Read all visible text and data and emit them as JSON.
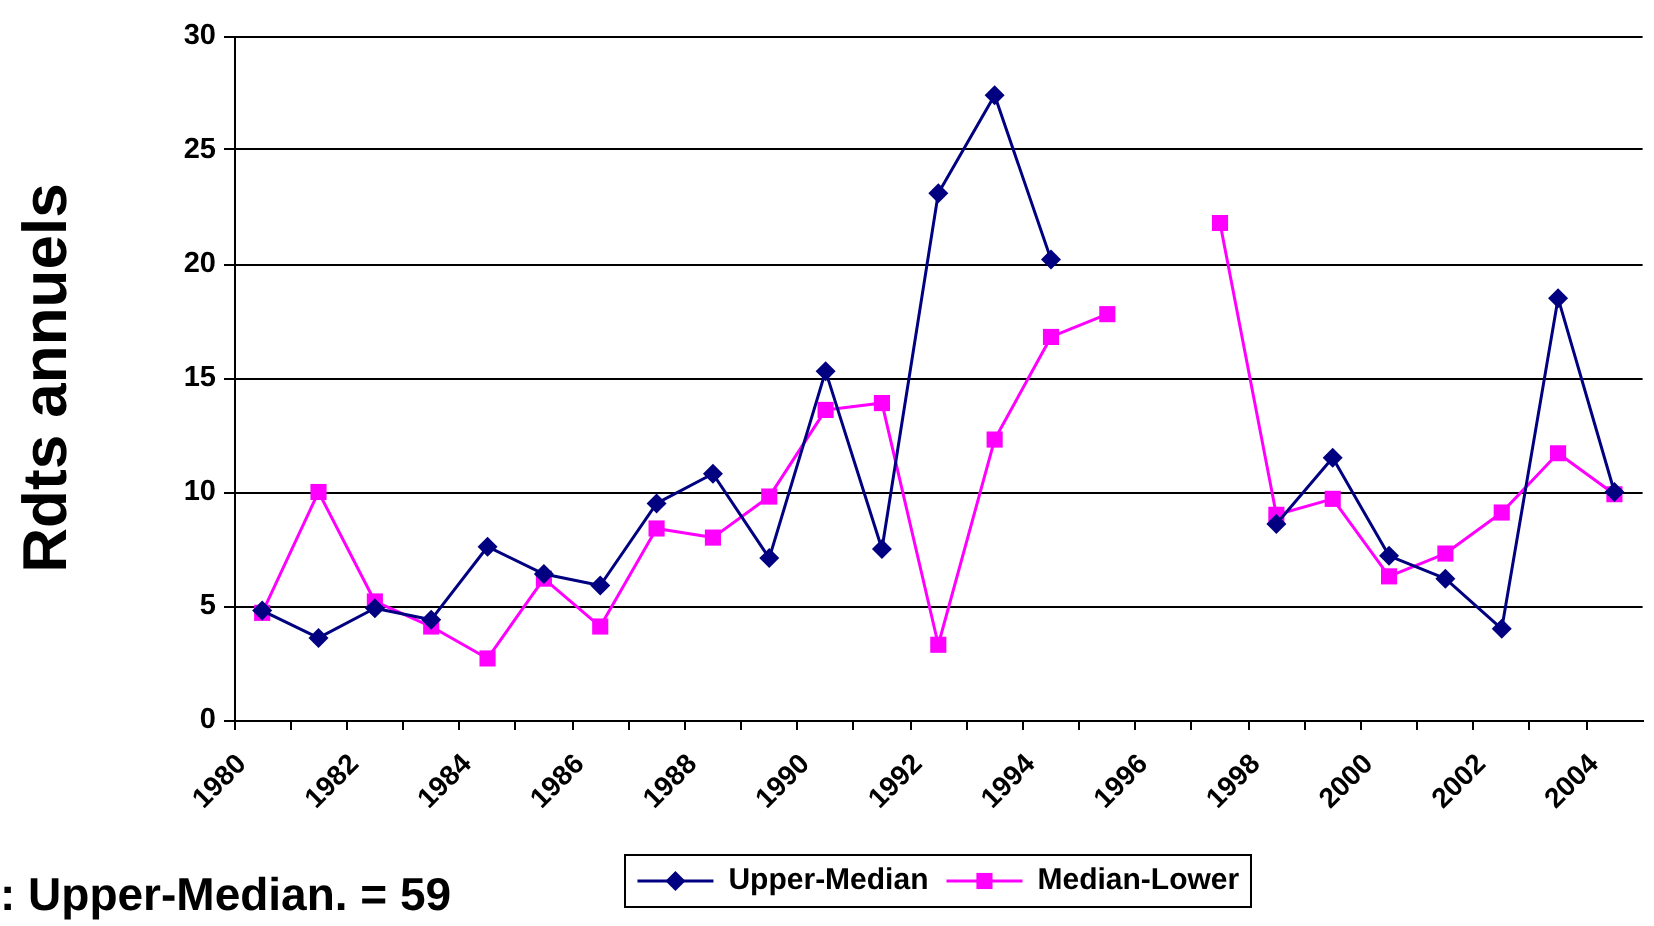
{
  "chart_data": {
    "type": "line",
    "ylabel": "Rdts annuels",
    "annotations": [
      ": Upper-Median. = 59"
    ],
    "x": [
      1980.5,
      1981.5,
      1982.5,
      1983.5,
      1984.5,
      1985.5,
      1986.5,
      1987.5,
      1988.5,
      1989.5,
      1990.5,
      1991.5,
      1992.5,
      1993.5,
      1994.5,
      1995.5,
      1996.5,
      1997.5,
      1998.5,
      1999.5,
      2000.5,
      2001.5,
      2002.5,
      2003.5,
      2004.5
    ],
    "xlim": [
      1980,
      2005
    ],
    "xticks": [
      1980,
      {
        "value": 1981,
        "label": null
      },
      1982,
      {
        "value": 1983,
        "label": null
      },
      1984,
      {
        "value": 1985,
        "label": null
      },
      1986,
      {
        "value": 1987,
        "label": null
      },
      1988,
      {
        "value": 1989,
        "label": null
      },
      1990,
      {
        "value": 1991,
        "label": null
      },
      1992,
      {
        "value": 1993,
        "label": null
      },
      1994,
      {
        "value": 1995,
        "label": null
      },
      1996,
      {
        "value": 1997,
        "label": null
      },
      1998,
      {
        "value": 1999,
        "label": null
      },
      2000,
      {
        "value": 2001,
        "label": null
      },
      2002,
      {
        "value": 2003,
        "label": null
      },
      2004
    ],
    "ylim": [
      0,
      30
    ],
    "yticks": [
      0,
      5,
      10,
      15,
      20,
      25,
      30
    ],
    "grid": "y",
    "legend": "bottom",
    "line_style": "solid",
    "series": [
      {
        "name": "Upper-Median",
        "color": "#000080",
        "marker": "diamond",
        "values": [
          4.8,
          3.6,
          4.9,
          4.4,
          7.6,
          6.4,
          5.9,
          9.5,
          10.8,
          7.1,
          15.3,
          7.5,
          23.1,
          27.4,
          20.2,
          null,
          null,
          null,
          8.6,
          11.5,
          7.2,
          6.2,
          4.0,
          18.5,
          10.0
        ]
      },
      {
        "name": "Median-Lower",
        "color": "#ff00ff",
        "marker": "square",
        "values": [
          4.7,
          10.0,
          5.2,
          4.1,
          2.7,
          6.2,
          4.1,
          8.4,
          8.0,
          9.8,
          13.6,
          13.9,
          3.3,
          12.3,
          16.8,
          17.8,
          null,
          21.8,
          9.0,
          9.7,
          6.3,
          7.3,
          9.1,
          11.7,
          9.9
        ]
      }
    ]
  }
}
